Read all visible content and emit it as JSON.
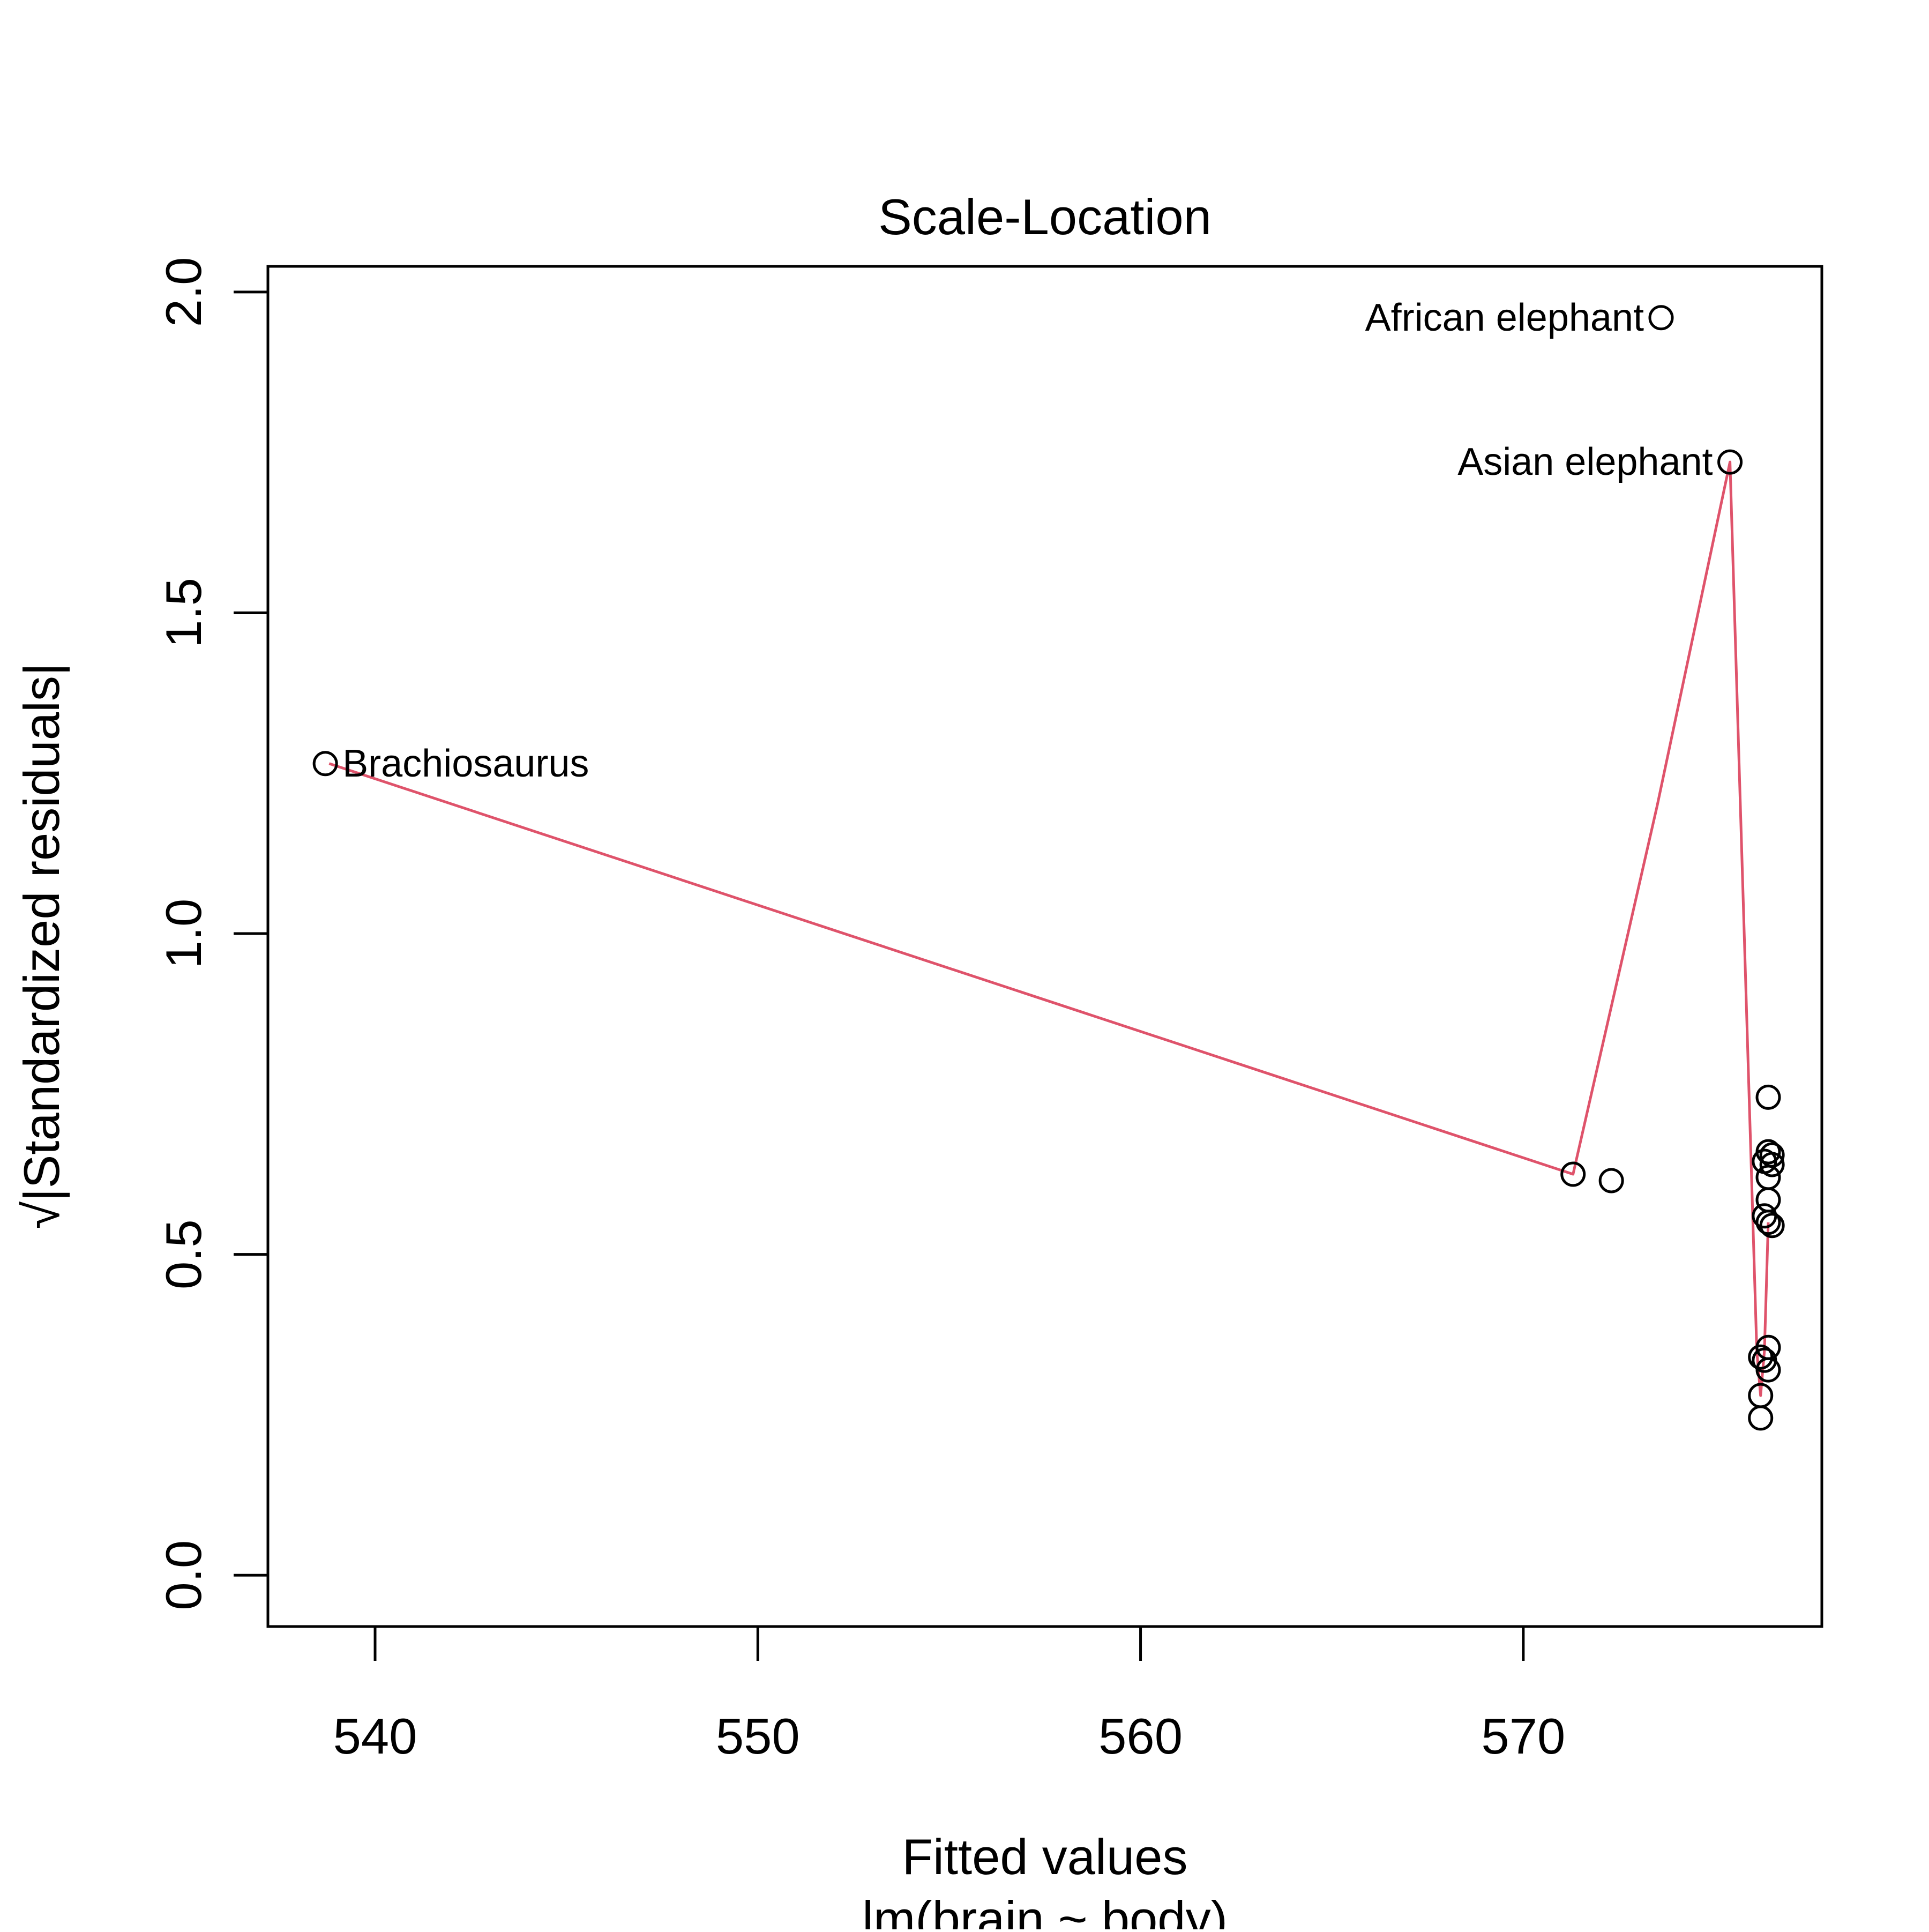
{
  "chart_data": {
    "type": "scatter",
    "title": "Scale-Location",
    "xlabel": "Fitted values",
    "subtitle": "lm(brain ~ body)",
    "ylabel": "√|Standardized residuals|",
    "xlim": [
      537.2,
      577.8
    ],
    "ylim": [
      -0.08,
      2.04
    ],
    "x_ticks": [
      540,
      550,
      560,
      570
    ],
    "y_ticks": [
      0.0,
      0.5,
      1.0,
      1.5,
      2.0
    ],
    "x_tick_labels": [
      "540",
      "550",
      "560",
      "570"
    ],
    "y_tick_labels": [
      "0.0",
      "0.5",
      "1.0",
      "1.5",
      "2.0"
    ],
    "grid": false,
    "point_color": "#000000",
    "smooth_color": "#df536b",
    "points": [
      {
        "x": 538.7,
        "y": 1.265,
        "label": "Brachiosaurus",
        "label_side": "right"
      },
      {
        "x": 573.6,
        "y": 1.96,
        "label": "African elephant",
        "label_side": "left"
      },
      {
        "x": 575.4,
        "y": 1.735,
        "label": "Asian elephant",
        "label_side": "left"
      },
      {
        "x": 571.3,
        "y": 0.625
      },
      {
        "x": 572.3,
        "y": 0.615
      },
      {
        "x": 576.4,
        "y": 0.745
      },
      {
        "x": 576.4,
        "y": 0.66
      },
      {
        "x": 576.5,
        "y": 0.655
      },
      {
        "x": 576.3,
        "y": 0.645
      },
      {
        "x": 576.5,
        "y": 0.64
      },
      {
        "x": 576.4,
        "y": 0.62
      },
      {
        "x": 576.4,
        "y": 0.585
      },
      {
        "x": 576.3,
        "y": 0.56
      },
      {
        "x": 576.4,
        "y": 0.55
      },
      {
        "x": 576.5,
        "y": 0.545
      },
      {
        "x": 576.4,
        "y": 0.355
      },
      {
        "x": 576.2,
        "y": 0.34
      },
      {
        "x": 576.3,
        "y": 0.335
      },
      {
        "x": 576.4,
        "y": 0.32
      },
      {
        "x": 576.2,
        "y": 0.28
      },
      {
        "x": 576.2,
        "y": 0.245
      }
    ],
    "smooth_line": [
      {
        "x": 538.8,
        "y": 1.265
      },
      {
        "x": 571.3,
        "y": 0.625
      },
      {
        "x": 573.5,
        "y": 1.2
      },
      {
        "x": 575.4,
        "y": 1.735
      },
      {
        "x": 576.0,
        "y": 0.55
      },
      {
        "x": 576.1,
        "y": 0.35
      },
      {
        "x": 576.2,
        "y": 0.28
      },
      {
        "x": 576.3,
        "y": 0.35
      },
      {
        "x": 576.4,
        "y": 0.55
      }
    ]
  }
}
